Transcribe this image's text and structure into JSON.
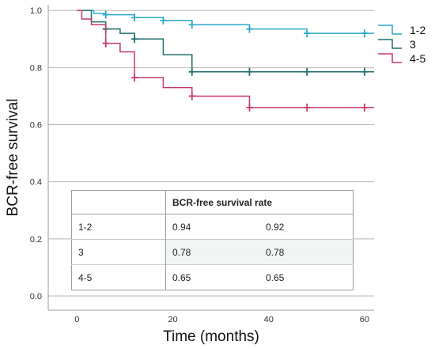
{
  "chart_data": {
    "type": "line",
    "subtype": "kaplan-meier",
    "title": "",
    "xlabel": "Time (months)",
    "ylabel": "BCR-free survival",
    "xlim": [
      -6,
      62
    ],
    "ylim": [
      -0.05,
      1.02
    ],
    "xticks": [
      0,
      20,
      40,
      60
    ],
    "yticks": [
      0.0,
      0.2,
      0.4,
      0.6,
      0.8,
      1.0
    ],
    "xtick_labels": [
      "0",
      "20",
      "40",
      "60"
    ],
    "ytick_labels": [
      "0.0",
      "0.2",
      "0.4",
      "0.6",
      "0.8",
      "1.0"
    ],
    "grid": "horizontal",
    "legend_position": "right",
    "series": [
      {
        "name": "1-2",
        "color": "#2aa8cb",
        "steps": [
          [
            0,
            1.0
          ],
          [
            3.5,
            0.99
          ],
          [
            6,
            0.985
          ],
          [
            12,
            0.975
          ],
          [
            18,
            0.965
          ],
          [
            24,
            0.95
          ],
          [
            36,
            0.935
          ],
          [
            48,
            0.92
          ],
          [
            62,
            0.92
          ]
        ],
        "censored": [
          [
            6,
            0.985
          ],
          [
            12,
            0.975
          ],
          [
            18,
            0.965
          ],
          [
            24,
            0.95
          ],
          [
            36,
            0.935
          ],
          [
            48,
            0.92
          ],
          [
            60,
            0.92
          ]
        ]
      },
      {
        "name": "3",
        "color": "#1e6f6a",
        "steps": [
          [
            0,
            1.0
          ],
          [
            3,
            0.96
          ],
          [
            6,
            0.935
          ],
          [
            9,
            0.92
          ],
          [
            12,
            0.9
          ],
          [
            18,
            0.845
          ],
          [
            24,
            0.785
          ],
          [
            62,
            0.785
          ]
        ],
        "censored": [
          [
            6,
            0.935
          ],
          [
            12,
            0.9
          ],
          [
            24,
            0.785
          ],
          [
            36,
            0.785
          ],
          [
            48,
            0.785
          ],
          [
            60,
            0.785
          ]
        ]
      },
      {
        "name": "4-5",
        "color": "#c8386c",
        "steps": [
          [
            0,
            1.0
          ],
          [
            1,
            0.97
          ],
          [
            3,
            0.95
          ],
          [
            6,
            0.885
          ],
          [
            9,
            0.855
          ],
          [
            12,
            0.765
          ],
          [
            18,
            0.73
          ],
          [
            24,
            0.7
          ],
          [
            36,
            0.66
          ],
          [
            62,
            0.66
          ]
        ],
        "censored": [
          [
            6,
            0.885
          ],
          [
            12,
            0.765
          ],
          [
            24,
            0.7
          ],
          [
            36,
            0.66
          ],
          [
            48,
            0.66
          ],
          [
            60,
            0.66
          ]
        ]
      }
    ],
    "table": {
      "header": "BCR-free survival rate",
      "rows": [
        {
          "group": "1-2",
          "v1": "0.94",
          "v2": "0.92"
        },
        {
          "group": "3",
          "v1": "0.78",
          "v2": "0.78"
        },
        {
          "group": "4-5",
          "v1": "0.65",
          "v2": "0.65"
        }
      ]
    }
  }
}
